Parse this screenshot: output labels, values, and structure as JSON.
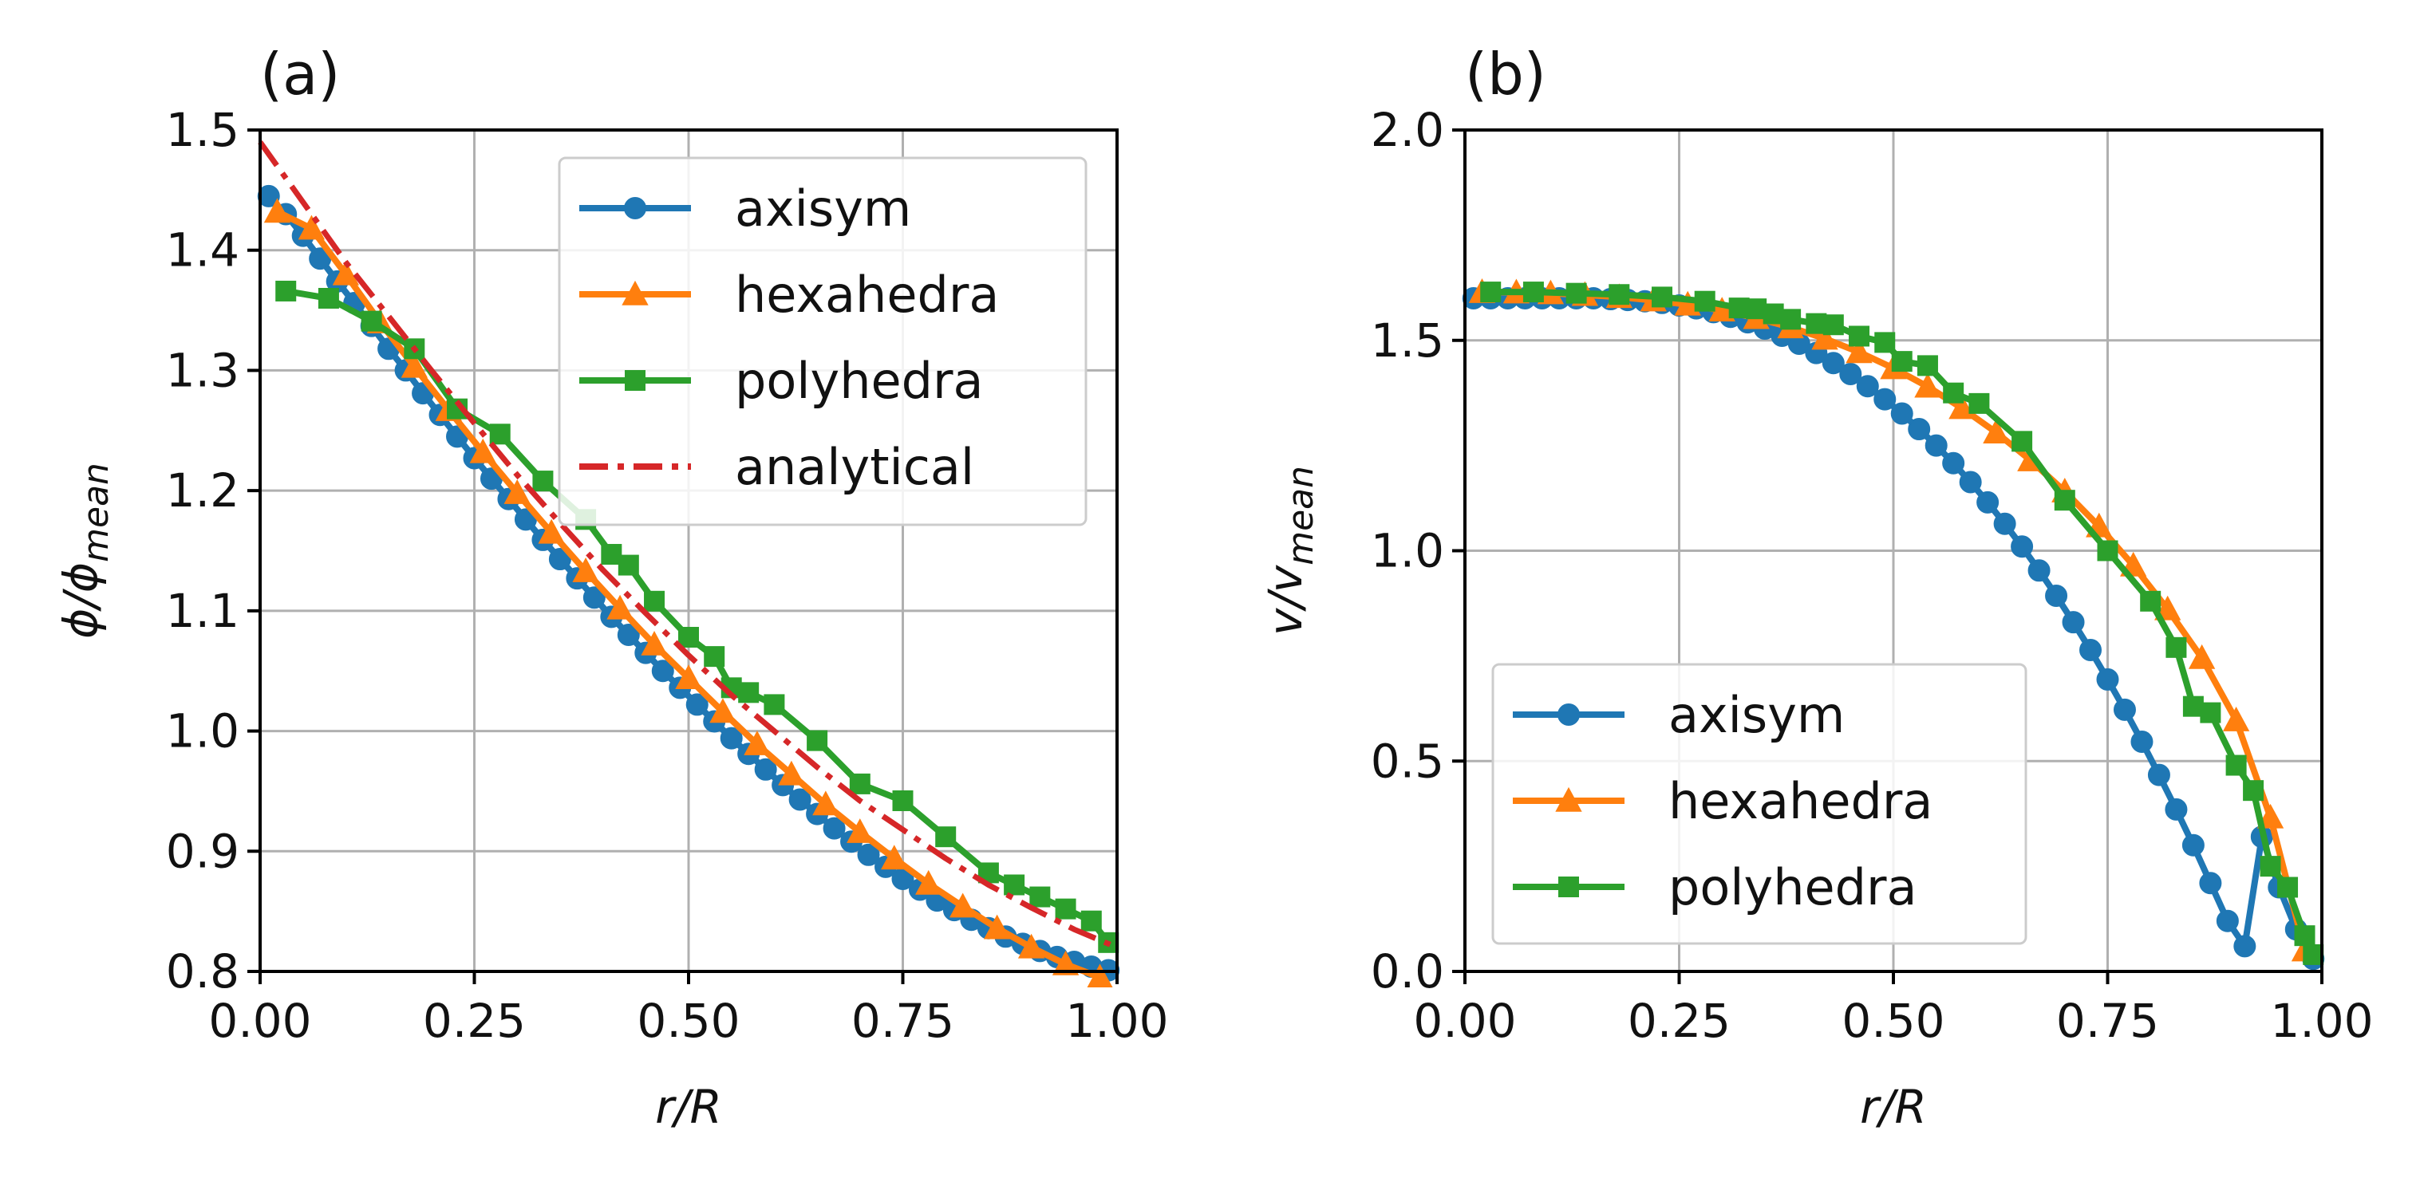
{
  "chart_data": [
    {
      "type": "line",
      "panel_label": "(a)",
      "xlabel": "r/R",
      "ylabel": {
        "base": "ϕ/ϕ",
        "sub": "mean"
      },
      "xlim": [
        0.0,
        1.0
      ],
      "ylim": [
        0.8,
        1.5
      ],
      "xticks": [
        0.0,
        0.25,
        0.5,
        0.75,
        1.0
      ],
      "xtick_labels": [
        "0.00",
        "0.25",
        "0.50",
        "0.75",
        "1.00"
      ],
      "yticks": [
        0.8,
        0.9,
        1.0,
        1.1,
        1.2,
        1.3,
        1.4,
        1.5
      ],
      "ytick_labels": [
        "0.8",
        "0.9",
        "1.0",
        "1.1",
        "1.2",
        "1.3",
        "1.4",
        "1.5"
      ],
      "grid": true,
      "legend_position": "top-right",
      "series": [
        {
          "name": "axisym",
          "color": "#1f77b4",
          "marker": "circle",
          "linestyle": "solid",
          "x": [
            0.01,
            0.03,
            0.05,
            0.07,
            0.09,
            0.11,
            0.13,
            0.15,
            0.17,
            0.19,
            0.21,
            0.23,
            0.25,
            0.27,
            0.29,
            0.31,
            0.33,
            0.35,
            0.37,
            0.39,
            0.41,
            0.43,
            0.45,
            0.47,
            0.49,
            0.51,
            0.53,
            0.55,
            0.57,
            0.59,
            0.61,
            0.63,
            0.65,
            0.67,
            0.69,
            0.71,
            0.73,
            0.75,
            0.77,
            0.79,
            0.81,
            0.83,
            0.85,
            0.87,
            0.89,
            0.91,
            0.93,
            0.95,
            0.97,
            0.99
          ],
          "y": [
            1.445,
            1.43,
            1.412,
            1.393,
            1.374,
            1.356,
            1.337,
            1.318,
            1.3,
            1.281,
            1.263,
            1.245,
            1.227,
            1.21,
            1.193,
            1.176,
            1.159,
            1.143,
            1.127,
            1.111,
            1.095,
            1.08,
            1.065,
            1.05,
            1.036,
            1.022,
            1.008,
            0.994,
            0.981,
            0.968,
            0.955,
            0.943,
            0.931,
            0.919,
            0.908,
            0.897,
            0.887,
            0.877,
            0.868,
            0.859,
            0.851,
            0.843,
            0.836,
            0.829,
            0.823,
            0.817,
            0.812,
            0.808,
            0.804,
            0.801
          ]
        },
        {
          "name": "hexahedra",
          "color": "#ff7f0e",
          "marker": "triangle",
          "linestyle": "solid",
          "x": [
            0.02,
            0.06,
            0.1,
            0.14,
            0.18,
            0.22,
            0.26,
            0.3,
            0.34,
            0.38,
            0.42,
            0.46,
            0.5,
            0.54,
            0.58,
            0.62,
            0.66,
            0.7,
            0.74,
            0.78,
            0.82,
            0.86,
            0.9,
            0.94,
            0.98
          ],
          "y": [
            1.432,
            1.418,
            1.38,
            1.34,
            1.303,
            1.267,
            1.232,
            1.198,
            1.165,
            1.133,
            1.102,
            1.072,
            1.044,
            1.016,
            0.989,
            0.964,
            0.939,
            0.916,
            0.894,
            0.873,
            0.854,
            0.836,
            0.82,
            0.806,
            0.795
          ]
        },
        {
          "name": "polyhedra",
          "color": "#2ca02c",
          "marker": "square",
          "linestyle": "solid",
          "x": [
            0.03,
            0.08,
            0.13,
            0.18,
            0.23,
            0.28,
            0.33,
            0.38,
            0.41,
            0.43,
            0.46,
            0.5,
            0.53,
            0.55,
            0.57,
            0.6,
            0.65,
            0.7,
            0.75,
            0.8,
            0.85,
            0.88,
            0.91,
            0.94,
            0.97,
            0.99
          ],
          "y": [
            1.366,
            1.36,
            1.341,
            1.318,
            1.268,
            1.247,
            1.208,
            1.176,
            1.147,
            1.138,
            1.108,
            1.078,
            1.062,
            1.036,
            1.032,
            1.022,
            0.992,
            0.956,
            0.942,
            0.912,
            0.882,
            0.872,
            0.862,
            0.852,
            0.842,
            0.824
          ]
        },
        {
          "name": "analytical",
          "color": "#d62728",
          "marker": "none",
          "linestyle": "dashdot",
          "x": [
            0.0,
            0.05,
            0.1,
            0.15,
            0.2,
            0.25,
            0.3,
            0.35,
            0.4,
            0.45,
            0.5,
            0.55,
            0.6,
            0.65,
            0.7,
            0.75,
            0.8,
            0.85,
            0.9,
            0.95,
            1.0
          ],
          "y": [
            1.49,
            1.44,
            1.39,
            1.345,
            1.3,
            1.256,
            1.213,
            1.173,
            1.134,
            1.098,
            1.063,
            1.03,
            1.0,
            0.97,
            0.942,
            0.918,
            0.894,
            0.872,
            0.853,
            0.835,
            0.82
          ]
        }
      ]
    },
    {
      "type": "line",
      "panel_label": "(b)",
      "xlabel": "r/R",
      "ylabel": {
        "base": "v/v",
        "sub": "mean"
      },
      "xlim": [
        0.0,
        1.0
      ],
      "ylim": [
        0.0,
        2.0
      ],
      "xticks": [
        0.0,
        0.25,
        0.5,
        0.75,
        1.0
      ],
      "xtick_labels": [
        "0.00",
        "0.25",
        "0.50",
        "0.75",
        "1.00"
      ],
      "yticks": [
        0.0,
        0.5,
        1.0,
        1.5,
        2.0
      ],
      "ytick_labels": [
        "0.0",
        "0.5",
        "1.0",
        "1.5",
        "2.0"
      ],
      "grid": true,
      "legend_position": "bottom-left",
      "series": [
        {
          "name": "axisym",
          "color": "#1f77b4",
          "marker": "circle",
          "linestyle": "solid",
          "x": [
            0.01,
            0.03,
            0.05,
            0.07,
            0.09,
            0.11,
            0.13,
            0.15,
            0.17,
            0.19,
            0.21,
            0.23,
            0.25,
            0.27,
            0.29,
            0.31,
            0.33,
            0.35,
            0.37,
            0.39,
            0.41,
            0.43,
            0.45,
            0.47,
            0.49,
            0.51,
            0.53,
            0.55,
            0.57,
            0.59,
            0.61,
            0.63,
            0.65,
            0.67,
            0.69,
            0.71,
            0.73,
            0.75,
            0.77,
            0.79,
            0.81,
            0.83,
            0.85,
            0.87,
            0.89,
            0.91,
            0.93,
            0.95,
            0.97,
            0.99
          ],
          "y": [
            1.6,
            1.6,
            1.6,
            1.6,
            1.6,
            1.6,
            1.6,
            1.6,
            1.598,
            1.596,
            1.593,
            1.589,
            1.583,
            1.576,
            1.567,
            1.556,
            1.543,
            1.528,
            1.511,
            1.492,
            1.47,
            1.446,
            1.42,
            1.391,
            1.36,
            1.326,
            1.289,
            1.25,
            1.208,
            1.163,
            1.115,
            1.064,
            1.01,
            0.953,
            0.893,
            0.83,
            0.764,
            0.694,
            0.622,
            0.546,
            0.467,
            0.385,
            0.3,
            0.21,
            0.12,
            0.06,
            0.32,
            0.2,
            0.1,
            0.03
          ]
        },
        {
          "name": "hexahedra",
          "color": "#ff7f0e",
          "marker": "triangle",
          "linestyle": "solid",
          "x": [
            0.02,
            0.06,
            0.1,
            0.14,
            0.18,
            0.22,
            0.26,
            0.3,
            0.34,
            0.38,
            0.42,
            0.46,
            0.5,
            0.54,
            0.58,
            0.62,
            0.66,
            0.7,
            0.74,
            0.78,
            0.82,
            0.86,
            0.9,
            0.94,
            0.98
          ],
          "y": [
            1.615,
            1.614,
            1.612,
            1.608,
            1.603,
            1.595,
            1.585,
            1.571,
            1.553,
            1.531,
            1.504,
            1.472,
            1.434,
            1.39,
            1.339,
            1.281,
            1.215,
            1.141,
            1.058,
            0.965,
            0.861,
            0.745,
            0.597,
            0.366,
            0.05
          ]
        },
        {
          "name": "polyhedra",
          "color": "#2ca02c",
          "marker": "square",
          "linestyle": "solid",
          "x": [
            0.03,
            0.08,
            0.13,
            0.18,
            0.23,
            0.28,
            0.32,
            0.34,
            0.36,
            0.38,
            0.41,
            0.43,
            0.46,
            0.49,
            0.51,
            0.54,
            0.57,
            0.6,
            0.65,
            0.7,
            0.75,
            0.8,
            0.83,
            0.85,
            0.87,
            0.9,
            0.92,
            0.94,
            0.96,
            0.98,
            0.99
          ],
          "y": [
            1.615,
            1.615,
            1.612,
            1.609,
            1.603,
            1.593,
            1.577,
            1.575,
            1.563,
            1.55,
            1.54,
            1.537,
            1.51,
            1.495,
            1.45,
            1.44,
            1.375,
            1.35,
            1.26,
            1.12,
            1.0,
            0.88,
            0.77,
            0.63,
            0.615,
            0.49,
            0.43,
            0.25,
            0.2,
            0.085,
            0.04
          ]
        }
      ]
    }
  ]
}
